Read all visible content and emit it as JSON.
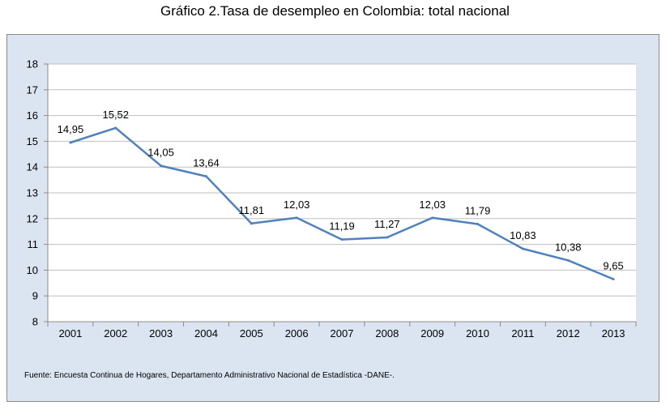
{
  "title": "Gráfico 2.Tasa de desempleo en Colombia: total nacional",
  "source": "Fuente: Encuesta Continua de Hogares, Departamento Administrativo Nacional de Estadística -DANE-.",
  "chart_data": {
    "type": "line",
    "title": "Gráfico 2.Tasa de desempleo en Colombia: total nacional",
    "xlabel": "",
    "ylabel": "",
    "ylim": [
      8,
      18
    ],
    "yticks": [
      8,
      9,
      10,
      11,
      12,
      13,
      14,
      15,
      16,
      17,
      18
    ],
    "categories": [
      "2001",
      "2002",
      "2003",
      "2004",
      "2005",
      "2006",
      "2007",
      "2008",
      "2009",
      "2010",
      "2011",
      "2012",
      "2013"
    ],
    "values": [
      14.95,
      15.52,
      14.05,
      13.64,
      11.81,
      12.03,
      11.19,
      11.27,
      12.03,
      11.79,
      10.83,
      10.38,
      9.65
    ],
    "data_labels": [
      "14,95",
      "15,52",
      "14,05",
      "13,64",
      "11,81",
      "12,03",
      "11,19",
      "11,27",
      "12,03",
      "11,79",
      "10,83",
      "10,38",
      "9,65"
    ],
    "grid": true,
    "legend": "none",
    "line_color": "#4f81bd"
  }
}
